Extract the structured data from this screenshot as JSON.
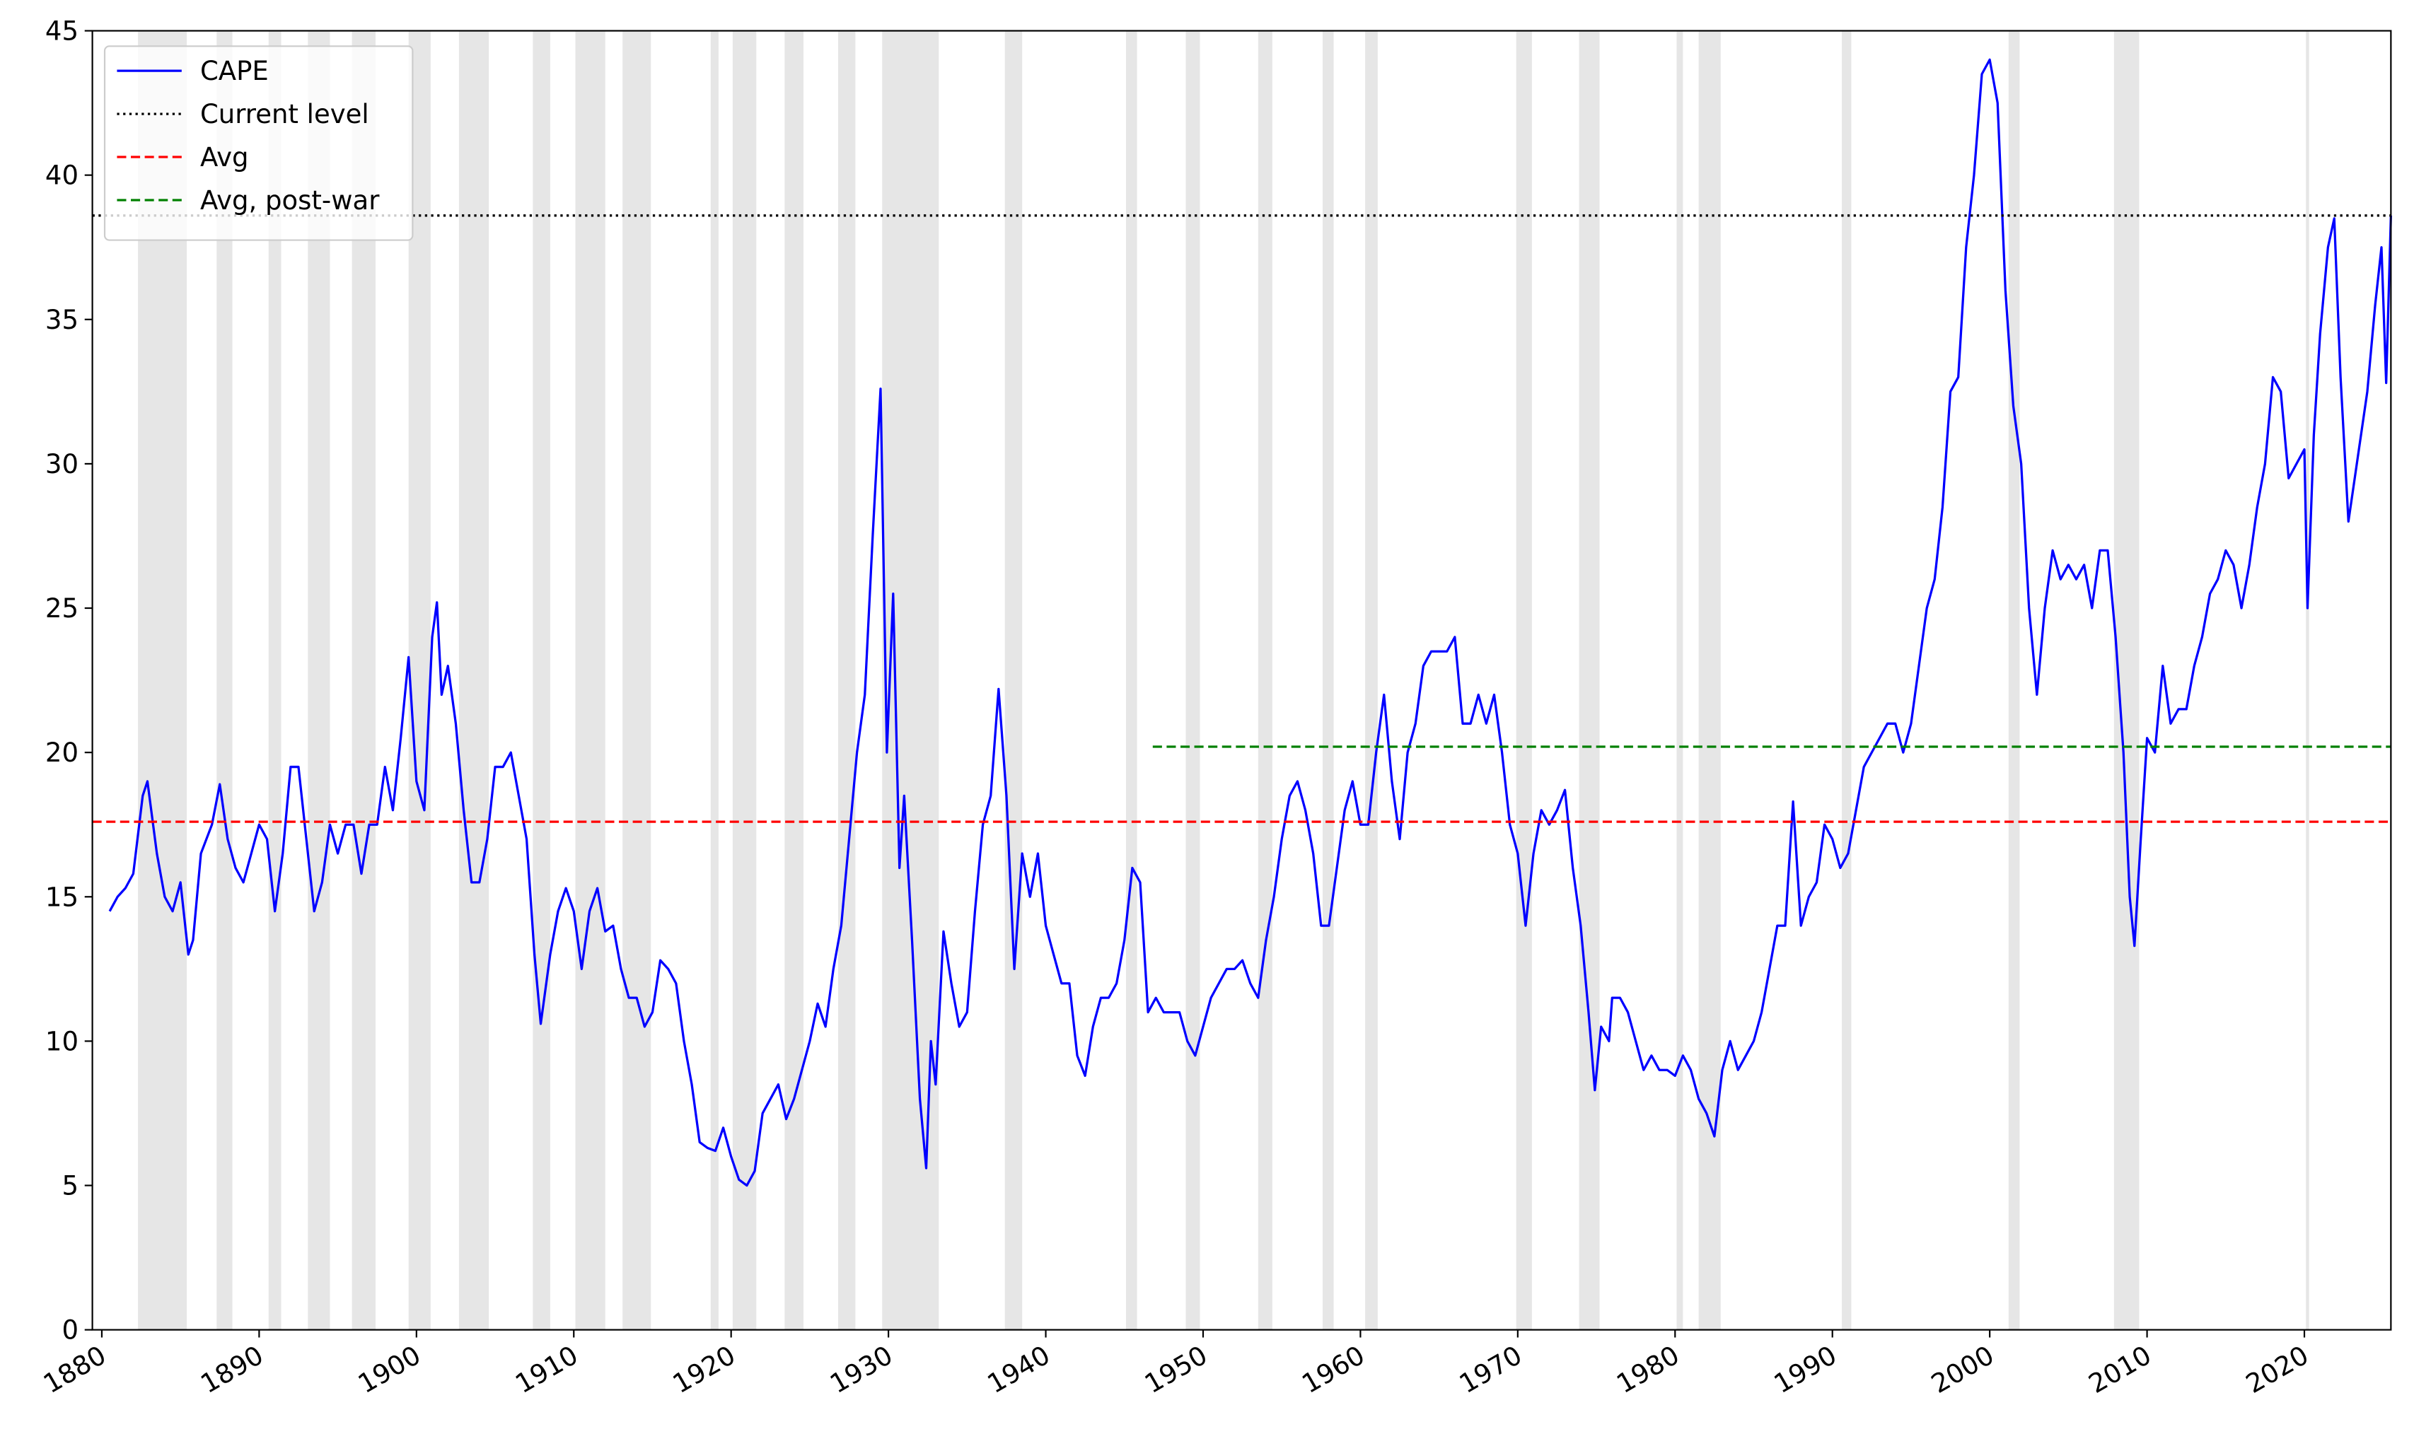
{
  "chart_data": {
    "type": "line",
    "x": [
      1880.5,
      1881,
      1881.5,
      1882,
      1882.6,
      1882.9,
      1883.5,
      1884,
      1884.5,
      1885,
      1885.5,
      1885.8,
      1886.3,
      1887,
      1887.5,
      1888,
      1888.5,
      1889,
      1889.5,
      1890,
      1890.5,
      1891,
      1891.5,
      1892,
      1892.5,
      1893,
      1893.5,
      1894,
      1894.5,
      1895,
      1895.5,
      1896,
      1896.5,
      1897,
      1897.5,
      1898,
      1898.5,
      1899,
      1899.5,
      1900,
      1900.5,
      1901,
      1901.3,
      1901.6,
      1902,
      1902.5,
      1903,
      1903.5,
      1904,
      1904.5,
      1905,
      1905.5,
      1906,
      1906.5,
      1907,
      1907.5,
      1907.9,
      1908.5,
      1909,
      1909.5,
      1910,
      1910.5,
      1911,
      1911.5,
      1912,
      1912.5,
      1913,
      1913.5,
      1914,
      1914.5,
      1915,
      1915.5,
      1916,
      1916.5,
      1917,
      1917.5,
      1918,
      1918.5,
      1919,
      1919.5,
      1920,
      1920.5,
      1921,
      1921.5,
      1922,
      1922.5,
      1923,
      1923.5,
      1924,
      1924.5,
      1925,
      1925.5,
      1926,
      1926.5,
      1927,
      1927.5,
      1928,
      1928.5,
      1929,
      1929.5,
      1929.9,
      1930.3,
      1930.7,
      1931,
      1931.5,
      1932,
      1932.4,
      1932.7,
      1933,
      1933.5,
      1934,
      1934.5,
      1935,
      1935.5,
      1936,
      1936.5,
      1937,
      1937.5,
      1938,
      1938.5,
      1939,
      1939.5,
      1940,
      1940.5,
      1941,
      1941.5,
      1942,
      1942.5,
      1943,
      1943.5,
      1944,
      1944.5,
      1945,
      1945.5,
      1946,
      1946.5,
      1947,
      1947.5,
      1948,
      1948.5,
      1949,
      1949.5,
      1950,
      1950.5,
      1951,
      1951.5,
      1952,
      1952.5,
      1953,
      1953.5,
      1954,
      1954.5,
      1955,
      1955.5,
      1956,
      1956.5,
      1957,
      1957.5,
      1958,
      1958.5,
      1959,
      1959.5,
      1960,
      1960.5,
      1961,
      1961.5,
      1962,
      1962.5,
      1963,
      1963.5,
      1964,
      1964.5,
      1965,
      1965.5,
      1966,
      1966.5,
      1967,
      1967.5,
      1968,
      1968.5,
      1969,
      1969.5,
      1970,
      1970.5,
      1971,
      1971.5,
      1972,
      1972.5,
      1973,
      1973.5,
      1974,
      1974.5,
      1974.9,
      1975.3,
      1975.8,
      1976,
      1976.5,
      1977,
      1977.5,
      1978,
      1978.5,
      1979,
      1979.5,
      1980,
      1980.5,
      1981,
      1981.5,
      1982,
      1982.5,
      1983,
      1983.5,
      1984,
      1984.5,
      1985,
      1985.5,
      1986,
      1986.5,
      1987,
      1987.5,
      1988,
      1988.5,
      1989,
      1989.5,
      1990,
      1990.5,
      1991,
      1991.5,
      1992,
      1992.5,
      1993,
      1993.5,
      1994,
      1994.5,
      1995,
      1995.5,
      1996,
      1996.5,
      1997,
      1997.5,
      1998,
      1998.5,
      1999,
      1999.5,
      2000,
      2000.5,
      2001,
      2001.5,
      2002,
      2002.5,
      2003,
      2003.5,
      2004,
      2004.5,
      2005,
      2005.5,
      2006,
      2006.5,
      2007,
      2007.5,
      2008,
      2008.5,
      2008.9,
      2009.2,
      2009.6,
      2010,
      2010.5,
      2011,
      2011.5,
      2012,
      2012.5,
      2013,
      2013.5,
      2014,
      2014.5,
      2015,
      2015.5,
      2016,
      2016.5,
      2017,
      2017.5,
      2018,
      2018.5,
      2019,
      2019.5,
      2020,
      2020.2,
      2020.6,
      2021,
      2021.5,
      2021.9,
      2022.3,
      2022.8,
      2023.2,
      2023.6,
      2024,
      2024.5,
      2024.9,
      2025.2,
      2025.5
    ],
    "series": [
      {
        "name": "CAPE",
        "color": "#0000ff",
        "values": [
          14.5,
          15,
          15.3,
          15.8,
          18.5,
          19,
          16.5,
          15,
          14.5,
          15.5,
          13,
          13.5,
          16.5,
          17.5,
          18.9,
          17,
          16,
          15.5,
          16.5,
          17.5,
          17,
          14.5,
          16.5,
          19.5,
          19.5,
          17,
          14.5,
          15.5,
          17.5,
          16.5,
          17.5,
          17.5,
          15.8,
          17.5,
          17.5,
          19.5,
          18,
          20.5,
          23.3,
          19,
          18,
          24,
          25.2,
          22,
          23,
          21,
          18,
          15.5,
          15.5,
          17,
          19.5,
          19.5,
          20,
          18.5,
          17,
          13,
          10.6,
          13,
          14.5,
          15.3,
          14.5,
          12.5,
          14.5,
          15.3,
          13.8,
          14,
          12.5,
          11.5,
          11.5,
          10.5,
          11,
          12.8,
          12.5,
          12,
          10,
          8.5,
          6.5,
          6.3,
          6.2,
          7,
          6,
          5.2,
          5,
          5.5,
          7.5,
          8,
          8.5,
          7.3,
          8,
          9,
          10,
          11.3,
          10.5,
          12.5,
          14,
          17,
          20,
          22,
          27.5,
          32.6,
          20,
          25.5,
          16,
          18.5,
          13.5,
          8,
          5.6,
          10,
          8.5,
          13.8,
          12,
          10.5,
          11,
          14.5,
          17.5,
          18.5,
          22.2,
          18.5,
          12.5,
          16.5,
          15,
          16.5,
          14,
          13,
          12,
          12,
          9.5,
          8.8,
          10.5,
          11.5,
          11.5,
          12,
          13.5,
          16,
          15.5,
          11,
          11.5,
          11,
          11,
          11,
          10,
          9.5,
          10.5,
          11.5,
          12,
          12.5,
          12.5,
          12.8,
          12,
          11.5,
          13.5,
          15,
          17,
          18.5,
          19,
          18,
          16.5,
          14,
          14,
          16,
          18,
          19,
          17.5,
          17.5,
          20,
          22,
          19,
          17,
          20,
          21,
          23,
          23.5,
          23.5,
          23.5,
          24,
          21,
          21,
          22,
          21,
          22,
          20,
          17.5,
          16.5,
          14,
          16.5,
          18,
          17.5,
          18,
          18.7,
          16,
          14,
          11,
          8.3,
          10.5,
          10,
          11.5,
          11.5,
          11,
          10,
          9,
          9.5,
          9,
          9,
          8.8,
          9.5,
          9,
          8,
          7.5,
          6.7,
          9,
          10,
          9,
          9.5,
          10,
          11,
          12.5,
          14,
          14,
          18.3,
          14,
          15,
          15.5,
          17.5,
          17,
          16,
          16.5,
          18,
          19.5,
          20,
          20.5,
          21,
          21,
          20,
          21,
          23,
          25,
          26,
          28.5,
          32.5,
          33,
          37.5,
          40,
          43.5,
          44,
          42.5,
          36,
          32,
          30,
          25,
          22,
          25,
          27,
          26,
          26.5,
          26,
          26.5,
          25,
          27,
          27,
          24,
          20,
          15,
          13.3,
          17,
          20.5,
          20,
          23,
          21,
          21.5,
          21.5,
          23,
          24,
          25.5,
          26,
          27,
          26.5,
          25,
          26.5,
          28.5,
          30,
          33,
          32.5,
          29.5,
          30,
          30.5,
          25,
          31,
          34.5,
          37.5,
          38.5,
          33,
          28,
          29.5,
          31,
          32.5,
          35.5,
          37.5,
          32.8,
          38.6
        ]
      }
    ],
    "hlines": [
      {
        "name": "Current level",
        "value": 38.6,
        "color": "#000000",
        "style": "dotted"
      },
      {
        "name": "Avg",
        "value": 17.6,
        "color": "#ff0000",
        "style": "dashed"
      },
      {
        "name": "Avg, post-war",
        "value": 20.2,
        "color": "#008000",
        "style": "dashed",
        "from": 1946.8
      }
    ],
    "recessions": [
      [
        1882.3,
        1885.4
      ],
      [
        1887.3,
        1888.3
      ],
      [
        1890.6,
        1891.4
      ],
      [
        1893.1,
        1894.5
      ],
      [
        1895.9,
        1897.4
      ],
      [
        1899.5,
        1900.9
      ],
      [
        1902.7,
        1904.6
      ],
      [
        1907.4,
        1908.5
      ],
      [
        1910.1,
        1912
      ],
      [
        1913.1,
        1914.9
      ],
      [
        1918.7,
        1919.2
      ],
      [
        1920.1,
        1921.6
      ],
      [
        1923.4,
        1924.6
      ],
      [
        1926.8,
        1927.9
      ],
      [
        1929.6,
        1933.2
      ],
      [
        1937.4,
        1938.5
      ],
      [
        1945.1,
        1945.8
      ],
      [
        1948.9,
        1949.8
      ],
      [
        1953.5,
        1954.4
      ],
      [
        1957.6,
        1958.3
      ],
      [
        1960.3,
        1961.1
      ],
      [
        1969.9,
        1970.9
      ],
      [
        1973.9,
        1975.2
      ],
      [
        1980.1,
        1980.5
      ],
      [
        1981.5,
        1982.9
      ],
      [
        1990.6,
        1991.2
      ],
      [
        2001.2,
        2001.9
      ],
      [
        2007.9,
        2009.5
      ],
      [
        2020.1,
        2020.3
      ]
    ],
    "recession_color": "#e6e6e6",
    "xlim": [
      1879.4,
      2025.5
    ],
    "xticks": [
      1880,
      1890,
      1900,
      1910,
      1920,
      1930,
      1940,
      1950,
      1960,
      1970,
      1980,
      1990,
      2000,
      2010,
      2020
    ],
    "ylim": [
      0,
      45
    ],
    "yticks": [
      0,
      5,
      10,
      15,
      20,
      25,
      30,
      35,
      40,
      45
    ],
    "legend": "upper left"
  }
}
